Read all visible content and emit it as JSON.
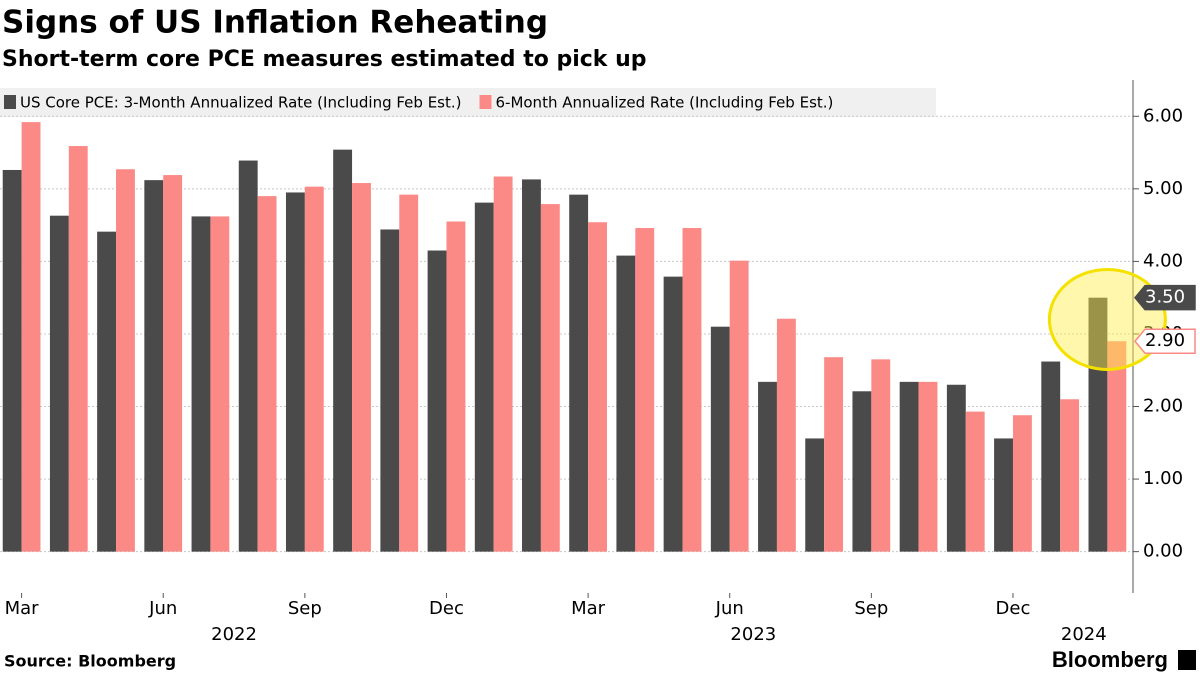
{
  "chart_data": {
    "type": "bar",
    "title": "Signs of US Inflation Reheating",
    "subtitle": "Short-term core PCE measures estimated to pick up",
    "source": "Source: Bloomberg",
    "brand": "Bloomberg",
    "categories": [
      "Mar",
      null,
      null,
      "Jun",
      null,
      null,
      "Sep",
      null,
      null,
      "Dec",
      null,
      null,
      "Mar",
      null,
      null,
      "Jun",
      null,
      null,
      "Sep",
      null,
      null,
      "Dec",
      null,
      null
    ],
    "x_groups": [
      {
        "label": "2022",
        "span": 10
      },
      {
        "label": "2023",
        "span": 12
      },
      {
        "label": "2024",
        "span": 2
      }
    ],
    "series": [
      {
        "name": "US Core PCE: 3-Month Annualized Rate (Including Feb Est.)",
        "color": "#4a4a4a",
        "values": [
          5.26,
          4.63,
          4.41,
          5.12,
          4.62,
          5.39,
          4.95,
          5.54,
          4.44,
          4.15,
          4.81,
          5.13,
          4.92,
          4.08,
          3.79,
          3.1,
          2.34,
          1.56,
          2.21,
          2.34,
          2.3,
          1.56,
          2.62,
          3.5
        ],
        "end_label": "3.50"
      },
      {
        "name": "6-Month Annualized Rate (Including Feb Est.)",
        "color": "#fb8a87",
        "values": [
          5.92,
          5.59,
          5.27,
          5.19,
          4.62,
          4.9,
          5.03,
          5.08,
          4.92,
          4.55,
          5.17,
          4.79,
          4.54,
          4.46,
          4.46,
          4.01,
          3.21,
          2.68,
          2.65,
          2.34,
          1.93,
          1.88,
          2.1,
          2.9
        ],
        "end_label": "2.90"
      }
    ],
    "ylim": [
      -0.57,
      6.5
    ],
    "yticks": [
      {
        "value": 0,
        "label": "0.00"
      },
      {
        "value": 1,
        "label": "1.00"
      },
      {
        "value": 2,
        "label": "2.00"
      },
      {
        "value": 3,
        "label": "3.00"
      },
      {
        "value": 4,
        "label": "4.00"
      },
      {
        "value": 5,
        "label": "5.00"
      },
      {
        "value": 6,
        "label": "6.00"
      }
    ],
    "grid": true,
    "legend": "top-left"
  }
}
